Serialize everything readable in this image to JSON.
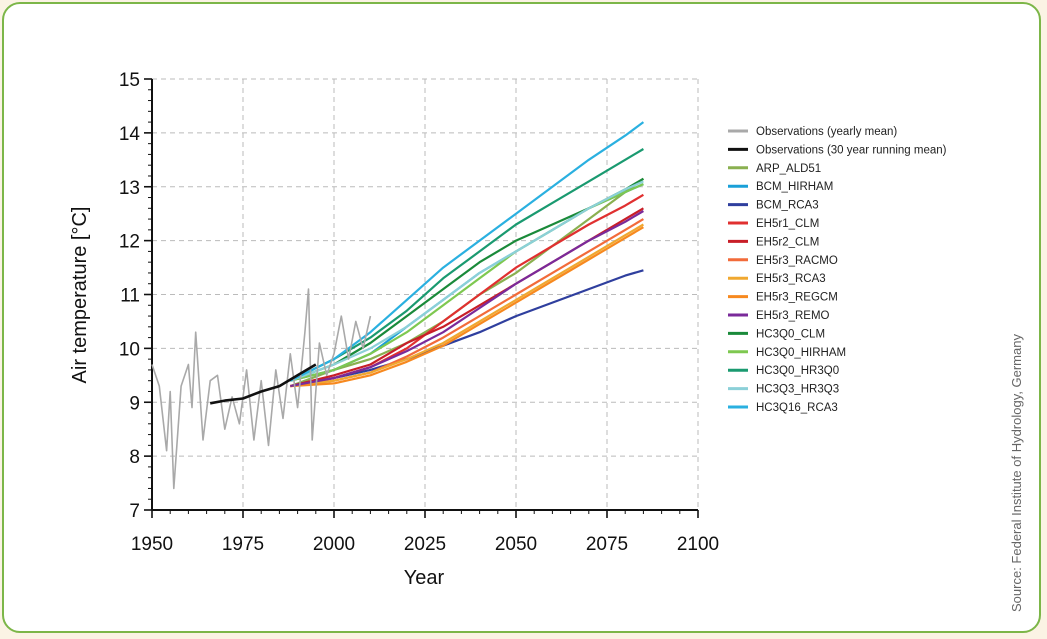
{
  "source_note": "Source: Federal Institute of Hydrology, Germany",
  "chart_data": {
    "type": "line",
    "xlabel": "Year",
    "ylabel": "Air temperature [°C]",
    "xlim": [
      1950,
      2100
    ],
    "ylim": [
      7,
      15
    ],
    "xticks": [
      1950,
      1975,
      2000,
      2025,
      2050,
      2075,
      2100
    ],
    "yticks": [
      7,
      8,
      9,
      10,
      11,
      12,
      13,
      14,
      15
    ],
    "grid": true,
    "legend_position": "right",
    "series": [
      {
        "name": "Observations (yearly mean)",
        "color": "#a9a9a9",
        "x": [
          1950,
          1952,
          1954,
          1955,
          1956,
          1958,
          1960,
          1961,
          1962,
          1964,
          1966,
          1968,
          1970,
          1972,
          1974,
          1976,
          1978,
          1980,
          1982,
          1984,
          1986,
          1988,
          1990,
          1992,
          1993,
          1994,
          1996,
          1998,
          2000,
          2002,
          2004,
          2006,
          2008,
          2010
        ],
        "y": [
          9.7,
          9.3,
          8.1,
          9.2,
          7.4,
          9.3,
          9.7,
          8.9,
          10.3,
          8.3,
          9.4,
          9.5,
          8.5,
          9.1,
          8.6,
          9.6,
          8.3,
          9.4,
          8.2,
          9.6,
          8.7,
          9.9,
          8.9,
          10.3,
          11.1,
          8.3,
          10.1,
          9.5,
          9.9,
          10.6,
          9.8,
          10.5,
          10.0,
          10.6
        ]
      },
      {
        "name": "Observations (30 year running mean)",
        "color": "#111111",
        "x": [
          1966,
          1970,
          1975,
          1980,
          1985,
          1990,
          1995
        ],
        "y": [
          8.98,
          9.03,
          9.07,
          9.2,
          9.3,
          9.5,
          9.7
        ]
      },
      {
        "name": "ARP_ALD51",
        "color": "#8ab050",
        "x": [
          1988,
          2000,
          2010,
          2020,
          2030,
          2040,
          2050,
          2060,
          2070,
          2080,
          2085
        ],
        "y": [
          9.3,
          9.6,
          9.8,
          10.1,
          10.5,
          11.0,
          11.4,
          11.9,
          12.4,
          12.9,
          13.15
        ]
      },
      {
        "name": "BCM_HIRHAM",
        "color": "#1aa0d8",
        "x": [
          1988,
          2000,
          2010,
          2020,
          2030,
          2040,
          2050,
          2060,
          2070,
          2080,
          2085
        ],
        "y": [
          9.4,
          9.6,
          9.9,
          10.4,
          10.9,
          11.4,
          11.8,
          12.2,
          12.6,
          12.9,
          13.05
        ]
      },
      {
        "name": "BCM_RCA3",
        "color": "#2f3f9e",
        "x": [
          1988,
          2000,
          2010,
          2020,
          2030,
          2040,
          2050,
          2060,
          2070,
          2080,
          2085
        ],
        "y": [
          9.3,
          9.45,
          9.6,
          9.8,
          10.05,
          10.3,
          10.6,
          10.85,
          11.1,
          11.35,
          11.45
        ]
      },
      {
        "name": "EH5r1_CLM",
        "color": "#e03030",
        "x": [
          1988,
          2000,
          2010,
          2020,
          2030,
          2040,
          2050,
          2060,
          2070,
          2080,
          2085
        ],
        "y": [
          9.3,
          9.45,
          9.65,
          10.0,
          10.5,
          11.0,
          11.5,
          11.9,
          12.3,
          12.65,
          12.85
        ]
      },
      {
        "name": "EH5r2_CLM",
        "color": "#c81e28",
        "x": [
          1988,
          2000,
          2010,
          2020,
          2030,
          2040,
          2050,
          2060,
          2070,
          2080,
          2085
        ],
        "y": [
          9.3,
          9.5,
          9.7,
          10.1,
          10.4,
          10.8,
          11.2,
          11.6,
          12.0,
          12.4,
          12.6
        ]
      },
      {
        "name": "EH5r3_RACMO",
        "color": "#f26b3a",
        "x": [
          1988,
          2000,
          2010,
          2020,
          2030,
          2040,
          2050,
          2060,
          2070,
          2080,
          2085
        ],
        "y": [
          9.3,
          9.4,
          9.55,
          9.85,
          10.2,
          10.6,
          11.0,
          11.4,
          11.8,
          12.2,
          12.4
        ]
      },
      {
        "name": "EH5r3_RCA3",
        "color": "#f0a830",
        "x": [
          1988,
          2000,
          2010,
          2020,
          2030,
          2040,
          2050,
          2060,
          2070,
          2080,
          2085
        ],
        "y": [
          9.3,
          9.4,
          9.55,
          9.8,
          10.1,
          10.5,
          10.9,
          11.3,
          11.7,
          12.1,
          12.3
        ]
      },
      {
        "name": "EH5r3_REGCM",
        "color": "#f7891f",
        "x": [
          1988,
          2000,
          2010,
          2020,
          2030,
          2040,
          2050,
          2060,
          2070,
          2080,
          2085
        ],
        "y": [
          9.3,
          9.35,
          9.5,
          9.75,
          10.05,
          10.45,
          10.85,
          11.25,
          11.65,
          12.05,
          12.25
        ]
      },
      {
        "name": "EH5r3_REMO",
        "color": "#7a2a9a",
        "x": [
          1988,
          2000,
          2010,
          2020,
          2030,
          2040,
          2050,
          2060,
          2070,
          2080,
          2085
        ],
        "y": [
          9.3,
          9.45,
          9.65,
          9.95,
          10.3,
          10.75,
          11.2,
          11.6,
          12.0,
          12.35,
          12.55
        ]
      },
      {
        "name": "HC3Q0_CLM",
        "color": "#1a8a3a",
        "x": [
          1988,
          2000,
          2010,
          2020,
          2030,
          2040,
          2050,
          2060,
          2070,
          2080,
          2085
        ],
        "y": [
          9.4,
          9.7,
          10.1,
          10.6,
          11.1,
          11.6,
          12.0,
          12.3,
          12.6,
          12.95,
          13.15
        ]
      },
      {
        "name": "HC3Q0_HIRHAM",
        "color": "#7ec850",
        "x": [
          1988,
          2000,
          2010,
          2020,
          2030,
          2040,
          2050,
          2060,
          2070,
          2080,
          2085
        ],
        "y": [
          9.4,
          9.6,
          9.9,
          10.3,
          10.8,
          11.3,
          11.8,
          12.2,
          12.6,
          12.9,
          13.05
        ]
      },
      {
        "name": "HC3Q0_HR3Q0",
        "color": "#1a9a70",
        "x": [
          1988,
          2000,
          2010,
          2020,
          2030,
          2040,
          2050,
          2060,
          2070,
          2080,
          2085
        ],
        "y": [
          9.4,
          9.8,
          10.2,
          10.7,
          11.3,
          11.8,
          12.3,
          12.7,
          13.1,
          13.5,
          13.7
        ]
      },
      {
        "name": "HC3Q3_HR3Q3",
        "color": "#8cd0d8",
        "x": [
          1988,
          2000,
          2010,
          2020,
          2030,
          2040,
          2050,
          2060,
          2070,
          2080,
          2085
        ],
        "y": [
          9.4,
          9.7,
          10.0,
          10.4,
          10.9,
          11.4,
          11.8,
          12.2,
          12.6,
          12.95,
          13.1
        ]
      },
      {
        "name": "HC3Q16_RCA3",
        "color": "#2ab0e0",
        "x": [
          1988,
          2000,
          2010,
          2020,
          2030,
          2040,
          2050,
          2060,
          2070,
          2080,
          2085
        ],
        "y": [
          9.4,
          9.8,
          10.3,
          10.9,
          11.5,
          12.0,
          12.5,
          13.0,
          13.5,
          13.95,
          14.2
        ]
      }
    ]
  }
}
